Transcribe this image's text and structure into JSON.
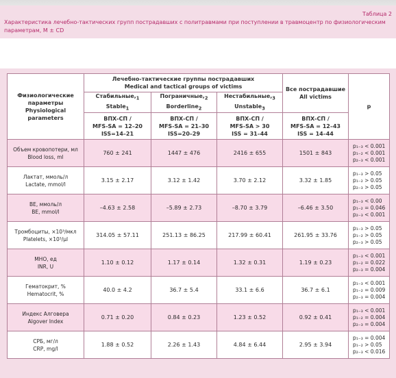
{
  "table_label": "Таблица 2",
  "table_title": "Характеристика лечебно-тактических групп пострадавших с политравмами при поступлении в травмоцентр по физиологическим параметрам, M ± CD",
  "header": {
    "param_ru": "Физиологические параметры",
    "param_en": "Physiological parameters",
    "groups_ru": "Лечебно-тактические группы пострадавших",
    "groups_en": "Medical and tactical groups of victims",
    "all_ru": "Все пострадавшие",
    "all_en": "All victims",
    "p": "p",
    "groups": [
      {
        "name_ru": "Стабильные,",
        "sub1": "1",
        "name_en": "Stable",
        "sub2": "1",
        "crit1": "ВПХ-СП /",
        "crit2": "MFS-SA = 12–20",
        "crit3": "ISS=14–21"
      },
      {
        "name_ru": "Пограничные,",
        "sub1": "2",
        "name_en": "Borderline",
        "sub2": "2",
        "crit1": "ВПХ-СП /",
        "crit2": "MFS-SA = 21–30",
        "crit3": "ISS=20–29"
      },
      {
        "name_ru": "Нестабильные,",
        "sub1": "3",
        "name_en": "Unstable",
        "sub2": "3",
        "crit1": "ВПХ-СП /",
        "crit2": "MFS-SA > 30",
        "crit3": "ISS = 31–44"
      }
    ],
    "all_crit1": "ВПХ-СП /",
    "all_crit2": "MFS-SA = 12–43",
    "all_crit3": "ISS = 14–44"
  },
  "rows": [
    {
      "ru": "Объем кровопотери, мл",
      "en": "Blood loss, ml",
      "g1": "760 ± 241",
      "g2": "1447 ± 476",
      "g3": "2416 ± 655",
      "all": "1501 ± 843",
      "p": [
        "p₁₋₃ < 0.001",
        "p₁₋₂ < 0.001",
        "p₂₋₃ < 0.001"
      ]
    },
    {
      "ru": "Лактат, ммоль/л",
      "en": "Lactate, mmol/l",
      "g1": "3.15 ± 2.17",
      "g2": "3.12 ± 1.42",
      "g3": "3.70 ± 2.12",
      "all": "3.32 ± 1.85",
      "p": [
        "p₁₋₃ > 0.05",
        "p₁₋₂ > 0.05",
        "p₂₋₃ > 0.05"
      ]
    },
    {
      "ru": "BE, ммоль/л",
      "en": "BE,  mmol/l",
      "g1": "–4.63 ± 2.58",
      "g2": "–5.89 ± 2.73",
      "g3": "–8.70 ± 3.79",
      "all": "–6.46 ± 3.50",
      "p": [
        "p₁₋₃ < 0.00",
        "p₁₋₂ = 0.046",
        "p₂₋₃ < 0.001"
      ]
    },
    {
      "ru": "Тромбоциты, ×10³/мкл",
      "en": "Platelets, ×10³/μl",
      "g1": "314.05 ± 57.11",
      "g2": "251.13 ± 86.25",
      "g3": "217.99 ± 60.41",
      "all": "261.95 ± 33.76",
      "p": [
        "p₁₋₃ > 0.05",
        "p₁₋₂ > 0.05",
        "p₂₋₃ > 0.05"
      ]
    },
    {
      "ru": "МНО, ед",
      "en": "INR, U",
      "g1": "1.10 ± 0.12",
      "g2": "1.17 ± 0.14",
      "g3": "1.32 ± 0.31",
      "all": "1.19 ± 0.23",
      "p": [
        "p₁₋₃ < 0.001",
        "p₁₋₂ = 0.022",
        "p₂₋₃ = 0.004"
      ]
    },
    {
      "ru": "Гематокрит, %",
      "en": "Hematocrit, %",
      "g1": "40.0 ± 4.2",
      "g2": "36.7 ± 5.4",
      "g3": "33.1 ± 6.6",
      "all": "36.7 ± 6.1",
      "p": [
        "p₁₋₃ < 0.001",
        "p₁₋₂ = 0.009",
        "p₂₋₃ = 0.004"
      ]
    },
    {
      "ru": "Индекс Алговера",
      "en": "Algover Index",
      "g1": "0.71 ± 0.20",
      "g2": "0.84 ± 0.23",
      "g3": "1.23 ± 0.52",
      "all": "0.92 ± 0.41",
      "p": [
        "p₁₋₃ < 0.001",
        "p₁₋₂ = 0.004",
        "p₂₋₃ = 0.004"
      ]
    },
    {
      "ru": "СРБ, мг/л",
      "en": "CRP, mg/l",
      "g1": "1.88 ± 0.52",
      "g2": "2.26 ± 1.43",
      "g3": "4.84 ± 6.44",
      "all": "2.95 ± 3.94",
      "p": [
        "p₁₋₃ = 0.004",
        "p₁₋₂ > 0.05",
        "p₂₋₃ < 0.016"
      ]
    }
  ]
}
